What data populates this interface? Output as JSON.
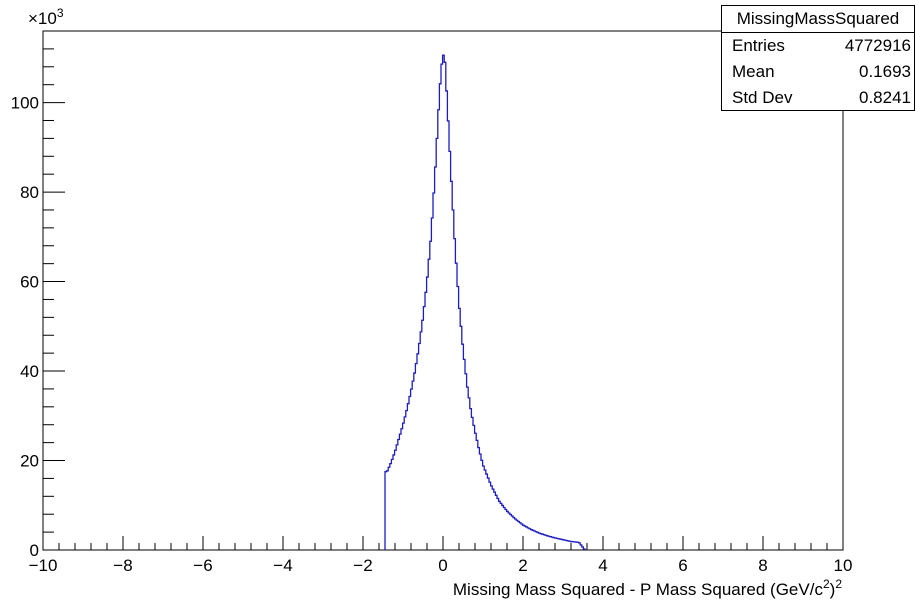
{
  "chart_data": {
    "type": "histogram",
    "title": "",
    "xlabel": "Missing Mass Squared - P Mass Squared (GeV/c",
    "xlabel_sup1": "2",
    "xlabel_close": ")",
    "xlabel_sup2": "2",
    "ylabel": "",
    "y_scale_label": "×10",
    "y_scale_exp": "3",
    "xlim": [
      -10,
      10
    ],
    "ylim": [
      0,
      116000
    ],
    "x_ticks": [
      -10,
      -8,
      -6,
      -4,
      -2,
      0,
      2,
      4,
      6,
      8,
      10
    ],
    "x_tick_labels": [
      "−10",
      "−8",
      "−6",
      "−4",
      "−2",
      "0",
      "2",
      "4",
      "6",
      "8",
      "10"
    ],
    "y_ticks": [
      0,
      20000,
      40000,
      60000,
      80000,
      100000
    ],
    "y_tick_labels": [
      "0",
      "20",
      "40",
      "60",
      "80",
      "100"
    ],
    "grid": false,
    "line_color": "#1d1dbf",
    "series": [
      {
        "x": [
          -1.45,
          -1.4,
          -1.3,
          -1.2,
          -1.1,
          -1.0,
          -0.9,
          -0.8,
          -0.7,
          -0.6,
          -0.5,
          -0.4,
          -0.3,
          -0.2,
          -0.1,
          -0.05,
          0.0,
          0.05,
          0.1,
          0.2,
          0.3,
          0.4,
          0.5,
          0.6,
          0.7,
          0.8,
          0.9,
          1.0,
          1.2,
          1.4,
          1.6,
          1.8,
          2.0,
          2.2,
          2.4,
          2.6,
          2.8,
          3.0,
          3.2,
          3.4,
          3.55
        ],
        "y": [
          0,
          17500,
          19500,
          22000,
          25000,
          28000,
          31500,
          35500,
          40000,
          45500,
          52000,
          60000,
          70000,
          84000,
          100000,
          107000,
          111000,
          109000,
          101000,
          84000,
          68000,
          55000,
          45000,
          37000,
          31000,
          26500,
          22500,
          19000,
          14500,
          11000,
          8700,
          7000,
          5600,
          4600,
          3800,
          3200,
          2700,
          2300,
          1900,
          1700,
          0
        ]
      }
    ]
  },
  "stats_box": {
    "title": "MissingMassSquared",
    "entries_label": "Entries",
    "entries_value": "4772916",
    "mean_label": "Mean",
    "mean_value": "0.1693",
    "stddev_label": "Std Dev",
    "stddev_value": "0.8241"
  }
}
